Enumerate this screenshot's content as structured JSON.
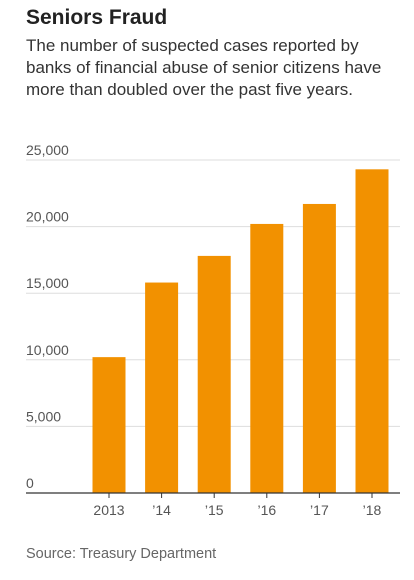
{
  "header": {
    "title": "Seniors Fraud",
    "subtitle": "The number of suspected cases reported by banks of financial abuse of senior citizens have more than doubled over the past five years."
  },
  "footer": {
    "source": "Source: Treasury Department"
  },
  "chart_data": {
    "type": "bar",
    "title": "Seniors Fraud",
    "subtitle": "The number of suspected cases reported by banks of financial abuse of senior citizens have more than doubled over the past five years.",
    "xlabel": "",
    "ylabel": "",
    "categories": [
      "2013",
      "’14",
      "’15",
      "’16",
      "’17",
      "’18"
    ],
    "values": [
      10200,
      15800,
      17800,
      20200,
      21700,
      24300
    ],
    "ylim": [
      0,
      25000
    ],
    "yticks": [
      0,
      5000,
      10000,
      15000,
      20000,
      25000
    ],
    "ytick_labels": [
      "0",
      "5,000",
      "10,000",
      "15,000",
      "20,000",
      "25,000"
    ],
    "grid": true,
    "legend": "none",
    "bar_color": "#f29100",
    "grid_color": "#dddddd",
    "axis_color": "#333333"
  }
}
